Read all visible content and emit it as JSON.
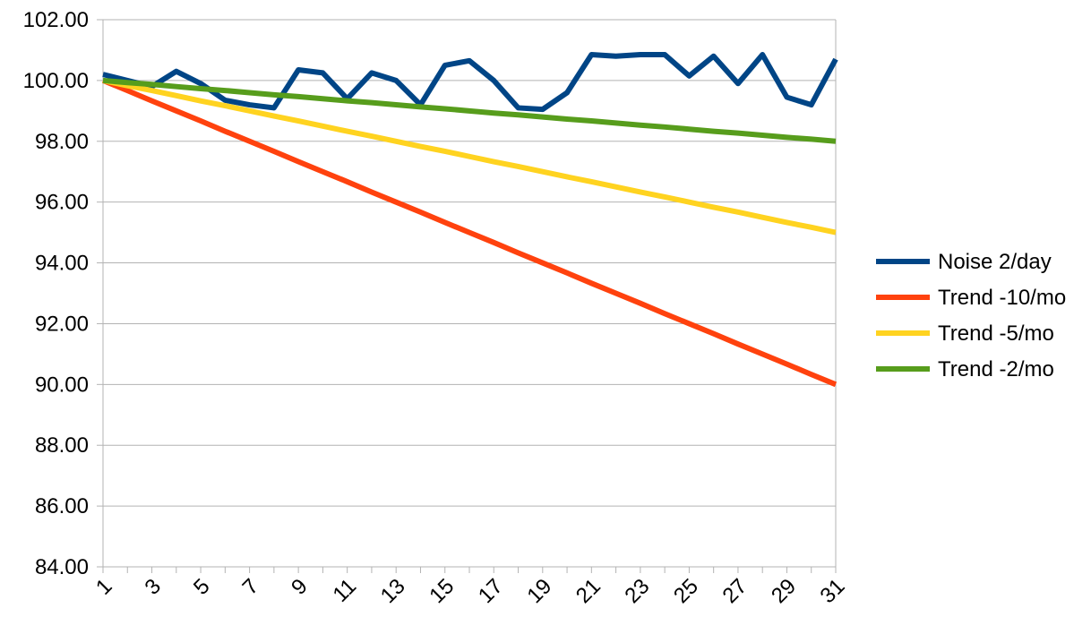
{
  "chart_data": {
    "type": "line",
    "title": "",
    "xlabel": "",
    "ylabel": "",
    "x": [
      1,
      2,
      3,
      4,
      5,
      6,
      7,
      8,
      9,
      10,
      11,
      12,
      13,
      14,
      15,
      16,
      17,
      18,
      19,
      20,
      21,
      22,
      23,
      24,
      25,
      26,
      27,
      28,
      29,
      30,
      31
    ],
    "x_tick_labels": [
      "1",
      "3",
      "5",
      "7",
      "9",
      "11",
      "13",
      "15",
      "17",
      "19",
      "21",
      "23",
      "25",
      "27",
      "29",
      "31"
    ],
    "ylim": [
      84,
      102
    ],
    "y_ticks": [
      84,
      86,
      88,
      90,
      92,
      94,
      96,
      98,
      100,
      102
    ],
    "y_tick_labels": [
      "84.00",
      "86.00",
      "88.00",
      "90.00",
      "92.00",
      "94.00",
      "96.00",
      "98.00",
      "100.00",
      "102.00"
    ],
    "grid": "horizontal",
    "legend_position": "right",
    "series": [
      {
        "name": "Noise 2/day",
        "color": "#004586",
        "values": [
          100.2,
          100.0,
          99.8,
          100.3,
          99.9,
          99.35,
          99.2,
          99.1,
          100.35,
          100.25,
          99.4,
          100.25,
          100.0,
          99.2,
          100.5,
          100.65,
          100.0,
          99.1,
          99.05,
          99.6,
          100.85,
          100.8,
          100.85,
          100.85,
          100.15,
          100.8,
          99.9,
          100.85,
          99.45,
          99.2,
          100.7
        ]
      },
      {
        "name": "Trend -10/mo",
        "color": "#ff420e",
        "values": [
          100.0,
          99.67,
          99.33,
          99.0,
          98.67,
          98.33,
          98.0,
          97.67,
          97.33,
          97.0,
          96.67,
          96.33,
          96.0,
          95.67,
          95.33,
          95.0,
          94.67,
          94.33,
          94.0,
          93.67,
          93.33,
          93.0,
          92.67,
          92.33,
          92.0,
          91.67,
          91.33,
          91.0,
          90.67,
          90.33,
          90.0
        ]
      },
      {
        "name": "Trend -5/mo",
        "color": "#ffd320",
        "values": [
          100.0,
          99.83,
          99.67,
          99.5,
          99.33,
          99.17,
          99.0,
          98.83,
          98.67,
          98.5,
          98.33,
          98.17,
          98.0,
          97.83,
          97.67,
          97.5,
          97.33,
          97.17,
          97.0,
          96.83,
          96.67,
          96.5,
          96.33,
          96.17,
          96.0,
          95.83,
          95.67,
          95.5,
          95.33,
          95.17,
          95.0
        ]
      },
      {
        "name": "Trend -2/mo",
        "color": "#579d1c",
        "values": [
          100.0,
          99.93,
          99.87,
          99.8,
          99.73,
          99.67,
          99.6,
          99.53,
          99.47,
          99.4,
          99.33,
          99.27,
          99.2,
          99.13,
          99.07,
          99.0,
          98.93,
          98.87,
          98.8,
          98.73,
          98.67,
          98.6,
          98.53,
          98.47,
          98.4,
          98.33,
          98.27,
          98.2,
          98.13,
          98.07,
          98.0
        ]
      }
    ]
  }
}
